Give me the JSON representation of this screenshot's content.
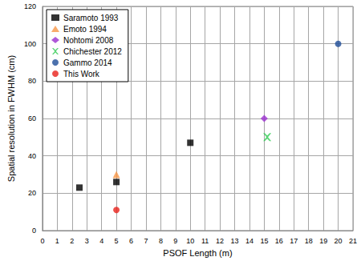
{
  "chart_data": {
    "type": "scatter",
    "x_label": "PSOF Length (m)",
    "y_label": "Spatial resolution in FWHM (cm)",
    "xlim": [
      0,
      21
    ],
    "xticks": [
      0,
      1,
      2,
      3,
      4,
      5,
      6,
      7,
      8,
      9,
      10,
      11,
      12,
      13,
      14,
      15,
      16,
      17,
      18,
      19,
      20,
      21
    ],
    "ylim": [
      0,
      120
    ],
    "yticks": [
      0,
      20,
      40,
      60,
      80,
      100,
      120
    ],
    "grid": true,
    "legend": "upper left",
    "series": [
      {
        "name": "Saramoto 1993",
        "color": "#000000",
        "marker": "square",
        "x": [
          2.5,
          5,
          10
        ],
        "values": [
          23,
          26,
          47
        ]
      },
      {
        "name": "Emoto 1994",
        "color": "#f79646",
        "marker": "triangle",
        "x": [
          5
        ],
        "values": [
          30
        ]
      },
      {
        "name": "Nohtomi 2008",
        "color": "#9b30d0",
        "marker": "diamond",
        "x": [
          15
        ],
        "values": [
          60
        ]
      },
      {
        "name": "Chichester 2012",
        "color": "#33cc55",
        "marker": "x",
        "x": [
          15.2
        ],
        "values": [
          50
        ]
      },
      {
        "name": "Gammo 2014",
        "color": "#1f4e99",
        "marker": "circle",
        "x": [
          20
        ],
        "values": [
          100
        ]
      },
      {
        "name": "This Work",
        "color": "#e8201a",
        "marker": "circle",
        "x": [
          5
        ],
        "values": [
          11
        ]
      }
    ]
  }
}
